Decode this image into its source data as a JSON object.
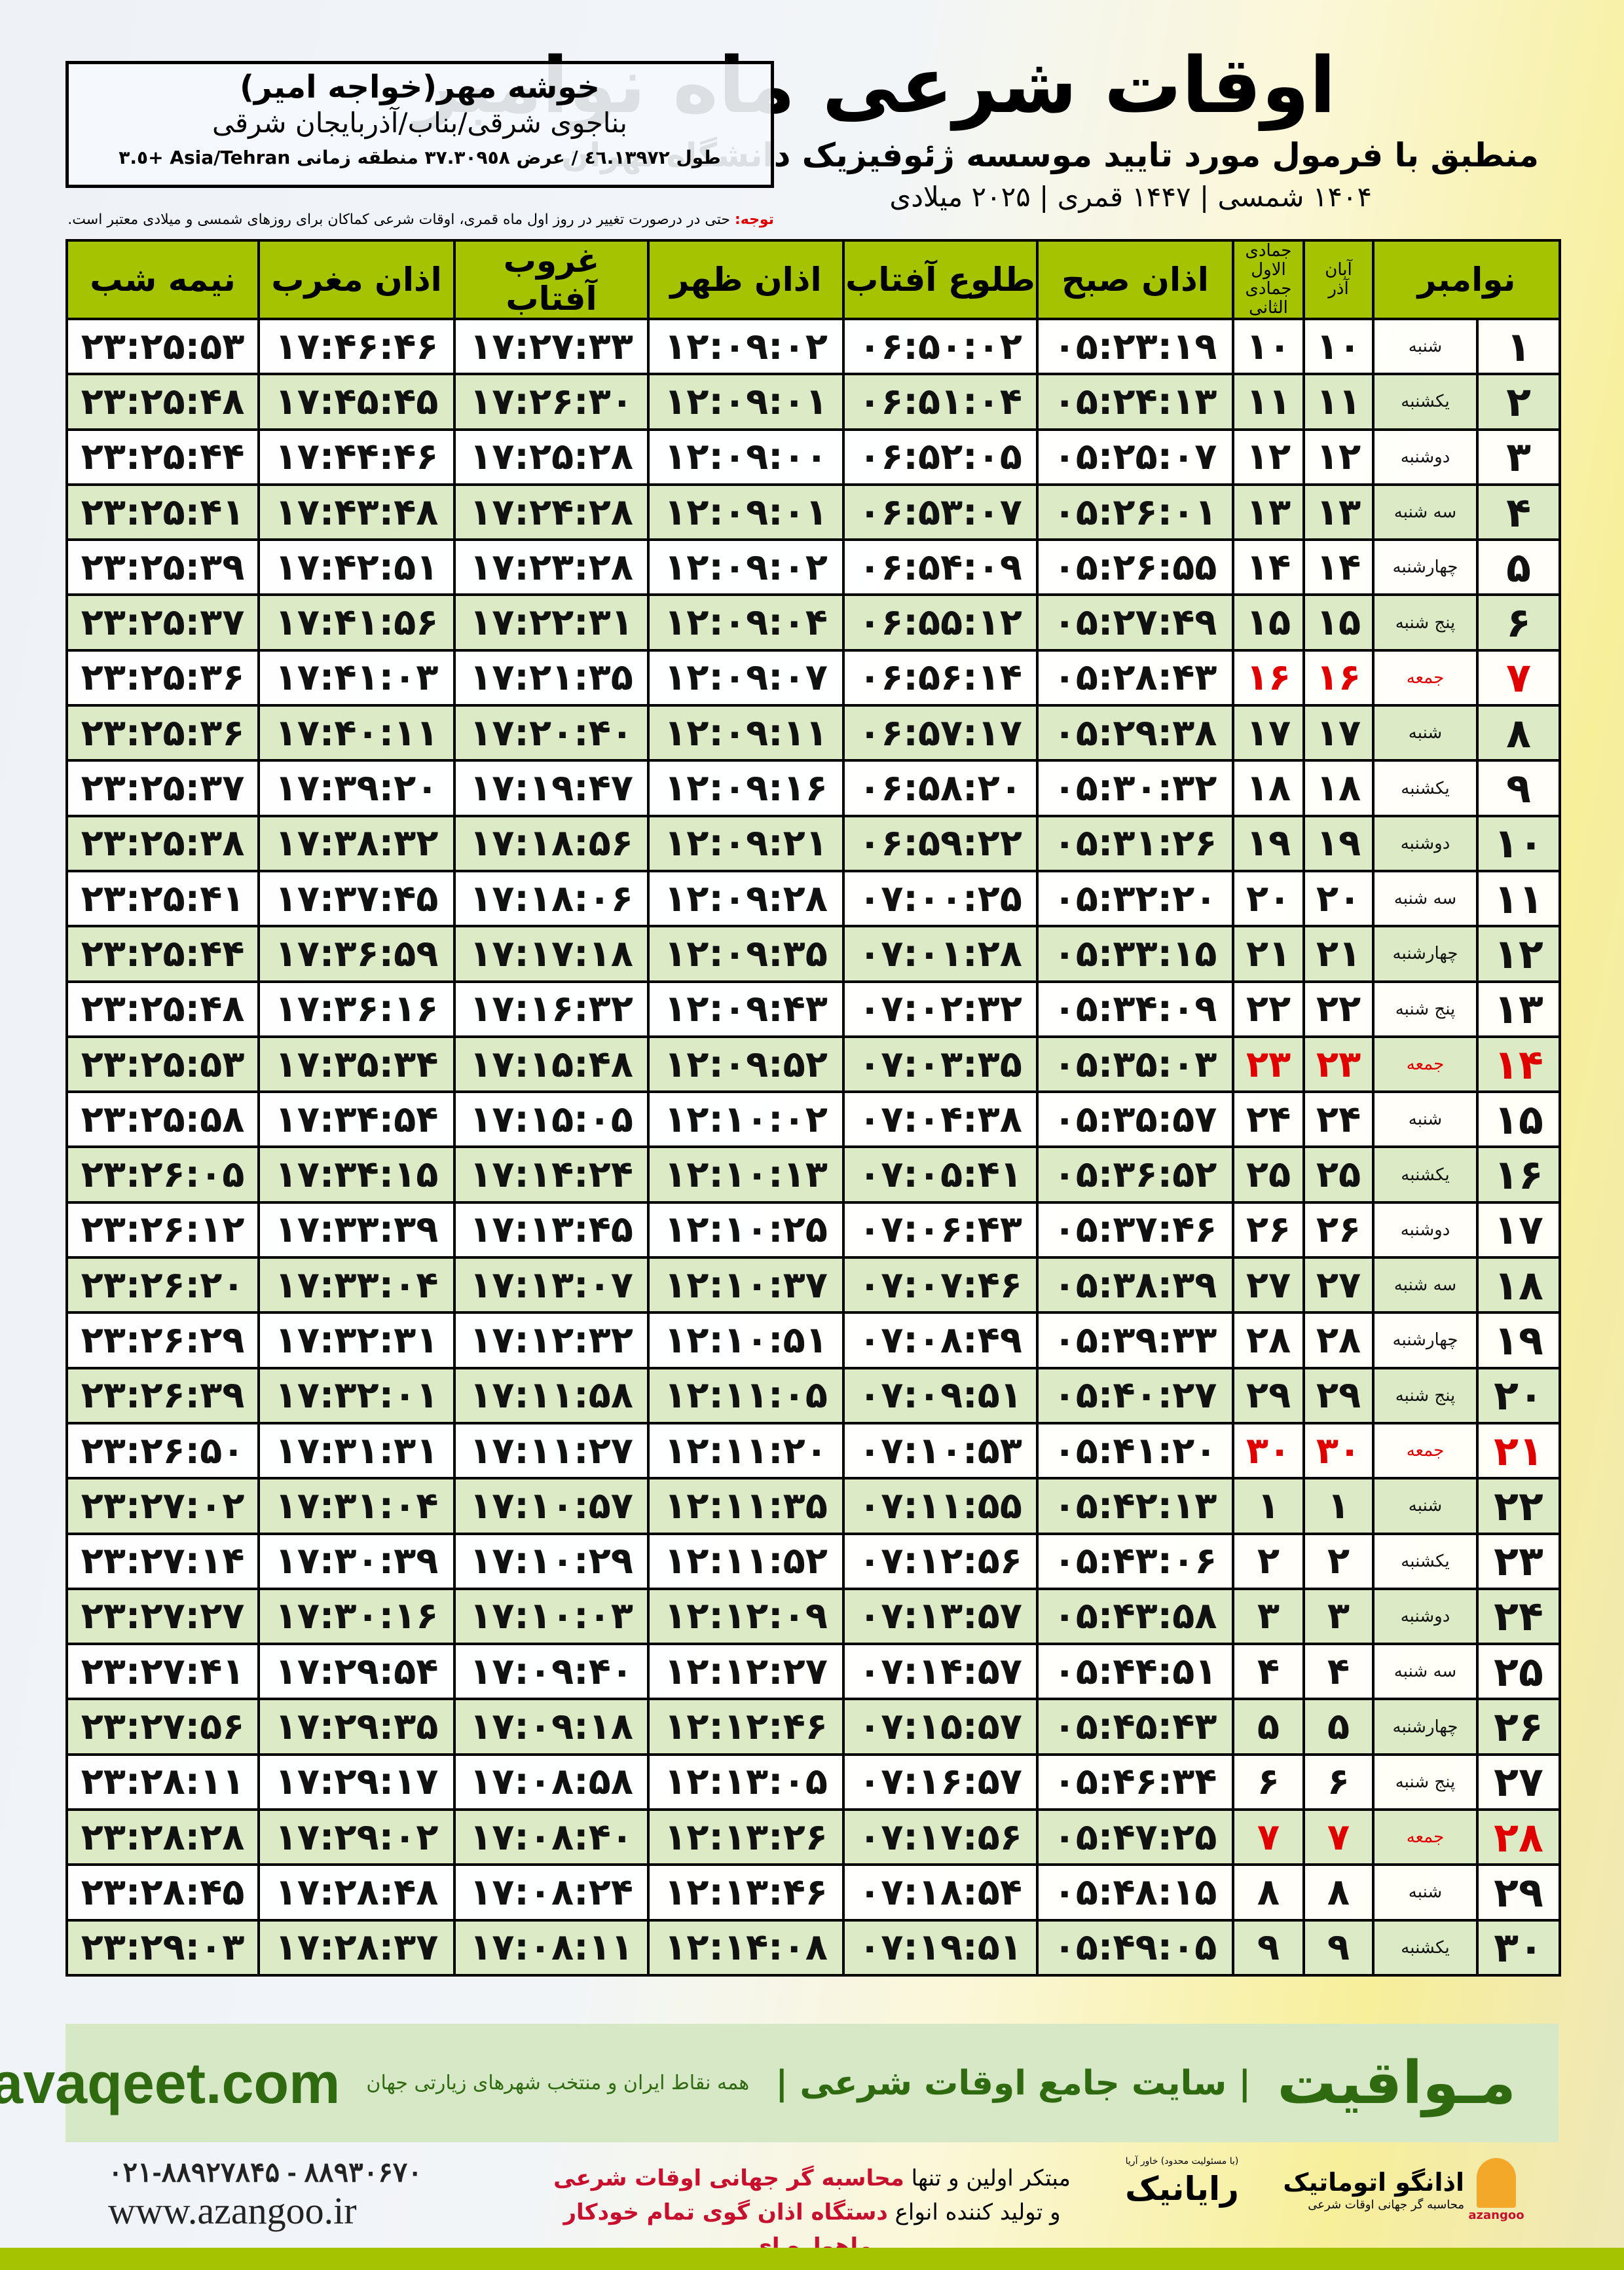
{
  "header": {
    "title": "اوقات شرعی ماه نوامبر",
    "subtitle": "منطبق با فرمول مورد تایید موسسه ژئوفیزیک دانشگاه تهران",
    "dates": "۱۴۰۴ شمسی | ۱۴۴۷ قمری | ۲۰۲۵ میلادی"
  },
  "location": {
    "name": "خوشه مهر(خواجه امیر)",
    "path": "بناجوی شرقی/بناب/آذربایجان شرقی",
    "coords": "طول ٤٦.١٣٩٧٢ / عرض ٣٧.٣٠٩٥٨ منطقه زمانی Asia/Tehran +٣.٥"
  },
  "note": {
    "label": "توجه:",
    "text": " حتی در درصورت تغییر در روز اول ماه قمری، اوقات شرعی کماکان برای روزهای شمسی و میلادی معتبر است."
  },
  "colors": {
    "header_green": "#a6c300",
    "row_alt": "#dcebc6",
    "friday": "#e00000",
    "brand_green": "#2f6a10"
  },
  "table": {
    "headers": {
      "month": "نوامبر",
      "solar_top": "آبان",
      "solar_bottom": "آذر",
      "lunar_top": "جمادی الاول",
      "lunar_bottom": "جمادی الثانی",
      "fajr": "اذان صبح",
      "sunrise": "طلوع آفتاب",
      "dhuhr": "اذان ظهر",
      "sunset": "غروب آفتاب",
      "maghrib": "اذان مغرب",
      "midnight": "نیمه شب"
    },
    "rows": [
      [
        "۱",
        "شنبه",
        "۱۰",
        "۱۰",
        "۰۵:۲۳:۱۹",
        "۰۶:۵۰:۰۲",
        "۱۲:۰۹:۰۲",
        "۱۷:۲۷:۳۳",
        "۱۷:۴۶:۴۶",
        "۲۳:۲۵:۵۳"
      ],
      [
        "۲",
        "یکشنبه",
        "۱۱",
        "۱۱",
        "۰۵:۲۴:۱۳",
        "۰۶:۵۱:۰۴",
        "۱۲:۰۹:۰۱",
        "۱۷:۲۶:۳۰",
        "۱۷:۴۵:۴۵",
        "۲۳:۲۵:۴۸"
      ],
      [
        "۳",
        "دوشنبه",
        "۱۲",
        "۱۲",
        "۰۵:۲۵:۰۷",
        "۰۶:۵۲:۰۵",
        "۱۲:۰۹:۰۰",
        "۱۷:۲۵:۲۸",
        "۱۷:۴۴:۴۶",
        "۲۳:۲۵:۴۴"
      ],
      [
        "۴",
        "سه شنبه",
        "۱۳",
        "۱۳",
        "۰۵:۲۶:۰۱",
        "۰۶:۵۳:۰۷",
        "۱۲:۰۹:۰۱",
        "۱۷:۲۴:۲۸",
        "۱۷:۴۳:۴۸",
        "۲۳:۲۵:۴۱"
      ],
      [
        "۵",
        "چهارشنبه",
        "۱۴",
        "۱۴",
        "۰۵:۲۶:۵۵",
        "۰۶:۵۴:۰۹",
        "۱۲:۰۹:۰۲",
        "۱۷:۲۳:۲۸",
        "۱۷:۴۲:۵۱",
        "۲۳:۲۵:۳۹"
      ],
      [
        "۶",
        "پنج شنبه",
        "۱۵",
        "۱۵",
        "۰۵:۲۷:۴۹",
        "۰۶:۵۵:۱۲",
        "۱۲:۰۹:۰۴",
        "۱۷:۲۲:۳۱",
        "۱۷:۴۱:۵۶",
        "۲۳:۲۵:۳۷"
      ],
      [
        "۷",
        "جمعه",
        "۱۶",
        "۱۶",
        "۰۵:۲۸:۴۳",
        "۰۶:۵۶:۱۴",
        "۱۲:۰۹:۰۷",
        "۱۷:۲۱:۳۵",
        "۱۷:۴۱:۰۳",
        "۲۳:۲۵:۳۶"
      ],
      [
        "۸",
        "شنبه",
        "۱۷",
        "۱۷",
        "۰۵:۲۹:۳۸",
        "۰۶:۵۷:۱۷",
        "۱۲:۰۹:۱۱",
        "۱۷:۲۰:۴۰",
        "۱۷:۴۰:۱۱",
        "۲۳:۲۵:۳۶"
      ],
      [
        "۹",
        "یکشنبه",
        "۱۸",
        "۱۸",
        "۰۵:۳۰:۳۲",
        "۰۶:۵۸:۲۰",
        "۱۲:۰۹:۱۶",
        "۱۷:۱۹:۴۷",
        "۱۷:۳۹:۲۰",
        "۲۳:۲۵:۳۷"
      ],
      [
        "۱۰",
        "دوشنبه",
        "۱۹",
        "۱۹",
        "۰۵:۳۱:۲۶",
        "۰۶:۵۹:۲۲",
        "۱۲:۰۹:۲۱",
        "۱۷:۱۸:۵۶",
        "۱۷:۳۸:۳۲",
        "۲۳:۲۵:۳۸"
      ],
      [
        "۱۱",
        "سه شنبه",
        "۲۰",
        "۲۰",
        "۰۵:۳۲:۲۰",
        "۰۷:۰۰:۲۵",
        "۱۲:۰۹:۲۸",
        "۱۷:۱۸:۰۶",
        "۱۷:۳۷:۴۵",
        "۲۳:۲۵:۴۱"
      ],
      [
        "۱۲",
        "چهارشنبه",
        "۲۱",
        "۲۱",
        "۰۵:۳۳:۱۵",
        "۰۷:۰۱:۲۸",
        "۱۲:۰۹:۳۵",
        "۱۷:۱۷:۱۸",
        "۱۷:۳۶:۵۹",
        "۲۳:۲۵:۴۴"
      ],
      [
        "۱۳",
        "پنج شنبه",
        "۲۲",
        "۲۲",
        "۰۵:۳۴:۰۹",
        "۰۷:۰۲:۳۲",
        "۱۲:۰۹:۴۳",
        "۱۷:۱۶:۳۲",
        "۱۷:۳۶:۱۶",
        "۲۳:۲۵:۴۸"
      ],
      [
        "۱۴",
        "جمعه",
        "۲۳",
        "۲۳",
        "۰۵:۳۵:۰۳",
        "۰۷:۰۳:۳۵",
        "۱۲:۰۹:۵۲",
        "۱۷:۱۵:۴۸",
        "۱۷:۳۵:۳۴",
        "۲۳:۲۵:۵۳"
      ],
      [
        "۱۵",
        "شنبه",
        "۲۴",
        "۲۴",
        "۰۵:۳۵:۵۷",
        "۰۷:۰۴:۳۸",
        "۱۲:۱۰:۰۲",
        "۱۷:۱۵:۰۵",
        "۱۷:۳۴:۵۴",
        "۲۳:۲۵:۵۸"
      ],
      [
        "۱۶",
        "یکشنبه",
        "۲۵",
        "۲۵",
        "۰۵:۳۶:۵۲",
        "۰۷:۰۵:۴۱",
        "۱۲:۱۰:۱۳",
        "۱۷:۱۴:۲۴",
        "۱۷:۳۴:۱۵",
        "۲۳:۲۶:۰۵"
      ],
      [
        "۱۷",
        "دوشنبه",
        "۲۶",
        "۲۶",
        "۰۵:۳۷:۴۶",
        "۰۷:۰۶:۴۳",
        "۱۲:۱۰:۲۵",
        "۱۷:۱۳:۴۵",
        "۱۷:۳۳:۳۹",
        "۲۳:۲۶:۱۲"
      ],
      [
        "۱۸",
        "سه شنبه",
        "۲۷",
        "۲۷",
        "۰۵:۳۸:۳۹",
        "۰۷:۰۷:۴۶",
        "۱۲:۱۰:۳۷",
        "۱۷:۱۳:۰۷",
        "۱۷:۳۳:۰۴",
        "۲۳:۲۶:۲۰"
      ],
      [
        "۱۹",
        "چهارشنبه",
        "۲۸",
        "۲۸",
        "۰۵:۳۹:۳۳",
        "۰۷:۰۸:۴۹",
        "۱۲:۱۰:۵۱",
        "۱۷:۱۲:۳۲",
        "۱۷:۳۲:۳۱",
        "۲۳:۲۶:۲۹"
      ],
      [
        "۲۰",
        "پنج شنبه",
        "۲۹",
        "۲۹",
        "۰۵:۴۰:۲۷",
        "۰۷:۰۹:۵۱",
        "۱۲:۱۱:۰۵",
        "۱۷:۱۱:۵۸",
        "۱۷:۳۲:۰۱",
        "۲۳:۲۶:۳۹"
      ],
      [
        "۲۱",
        "جمعه",
        "۳۰",
        "۳۰",
        "۰۵:۴۱:۲۰",
        "۰۷:۱۰:۵۳",
        "۱۲:۱۱:۲۰",
        "۱۷:۱۱:۲۷",
        "۱۷:۳۱:۳۱",
        "۲۳:۲۶:۵۰"
      ],
      [
        "۲۲",
        "شنبه",
        "۱",
        "۱",
        "۰۵:۴۲:۱۳",
        "۰۷:۱۱:۵۵",
        "۱۲:۱۱:۳۵",
        "۱۷:۱۰:۵۷",
        "۱۷:۳۱:۰۴",
        "۲۳:۲۷:۰۲"
      ],
      [
        "۲۳",
        "یکشنبه",
        "۲",
        "۲",
        "۰۵:۴۳:۰۶",
        "۰۷:۱۲:۵۶",
        "۱۲:۱۱:۵۲",
        "۱۷:۱۰:۲۹",
        "۱۷:۳۰:۳۹",
        "۲۳:۲۷:۱۴"
      ],
      [
        "۲۴",
        "دوشنبه",
        "۳",
        "۳",
        "۰۵:۴۳:۵۸",
        "۰۷:۱۳:۵۷",
        "۱۲:۱۲:۰۹",
        "۱۷:۱۰:۰۳",
        "۱۷:۳۰:۱۶",
        "۲۳:۲۷:۲۷"
      ],
      [
        "۲۵",
        "سه شنبه",
        "۴",
        "۴",
        "۰۵:۴۴:۵۱",
        "۰۷:۱۴:۵۷",
        "۱۲:۱۲:۲۷",
        "۱۷:۰۹:۴۰",
        "۱۷:۲۹:۵۴",
        "۲۳:۲۷:۴۱"
      ],
      [
        "۲۶",
        "چهارشنبه",
        "۵",
        "۵",
        "۰۵:۴۵:۴۳",
        "۰۷:۱۵:۵۷",
        "۱۲:۱۲:۴۶",
        "۱۷:۰۹:۱۸",
        "۱۷:۲۹:۳۵",
        "۲۳:۲۷:۵۶"
      ],
      [
        "۲۷",
        "پنج شنبه",
        "۶",
        "۶",
        "۰۵:۴۶:۳۴",
        "۰۷:۱۶:۵۷",
        "۱۲:۱۳:۰۵",
        "۱۷:۰۸:۵۸",
        "۱۷:۲۹:۱۷",
        "۲۳:۲۸:۱۱"
      ],
      [
        "۲۸",
        "جمعه",
        "۷",
        "۷",
        "۰۵:۴۷:۲۵",
        "۰۷:۱۷:۵۶",
        "۱۲:۱۳:۲۶",
        "۱۷:۰۸:۴۰",
        "۱۷:۲۹:۰۲",
        "۲۳:۲۸:۲۸"
      ],
      [
        "۲۹",
        "شنبه",
        "۸",
        "۸",
        "۰۵:۴۸:۱۵",
        "۰۷:۱۸:۵۴",
        "۱۲:۱۳:۴۶",
        "۱۷:۰۸:۲۴",
        "۱۷:۲۸:۴۸",
        "۲۳:۲۸:۴۵"
      ],
      [
        "۳۰",
        "یکشنبه",
        "۹",
        "۹",
        "۰۵:۴۹:۰۵",
        "۰۷:۱۹:۵۱",
        "۱۲:۱۴:۰۸",
        "۱۷:۰۸:۱۱",
        "۱۷:۲۸:۳۷",
        "۲۳:۲۹:۰۳"
      ]
    ]
  },
  "footer": {
    "brand": "مـواقیت",
    "tagline": "| سایت جامع اوقات شرعی |",
    "sub": "همه نقاط ایران و منتخب شهرهای زیارتی جهان",
    "url": "mavaqeet.com",
    "phone": "۰۲۱-۸۸۹۲۷۸۴۵ - ۸۸۹۳۰۶۷۰",
    "site": "www.azangoo.ir",
    "promo1a": "مبتکر اولین و تنها ",
    "promo1b": "محاسبه گر جهانی اوقات شرعی",
    "promo2a": "و تولید کننده انواع ",
    "promo2b": "دستگاه اذان گوی تمام خودکار ماهواره ای",
    "raynik": "رایانیک",
    "raynik_small": "(با مسئولیت محدود) خاور آریا",
    "az_name": "اذانگو اتوماتیک",
    "az_sub": "محاسبه گر جهانی اوقات شرعی",
    "az_en": "azangoo"
  }
}
